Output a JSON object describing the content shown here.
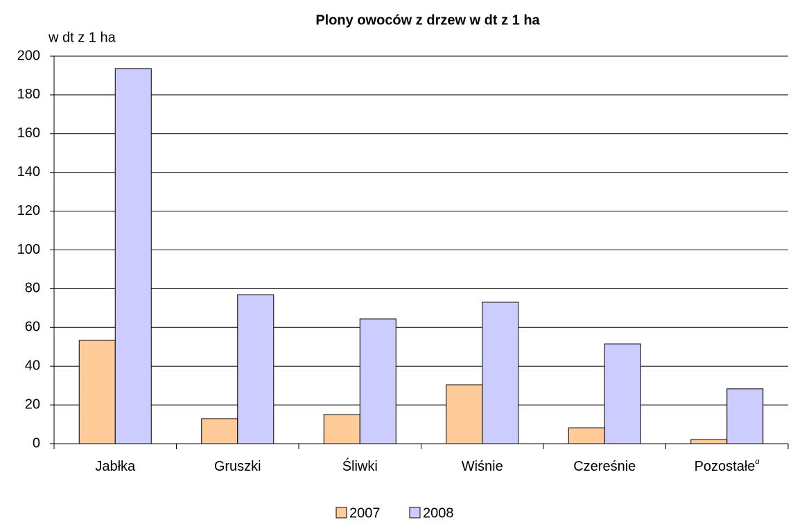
{
  "chart_data": {
    "type": "bar",
    "title": "Plony owoców z drzew w dt z 1 ha",
    "y_label": "w dt z 1 ha",
    "categories": [
      "Jabłka",
      "Gruszki",
      "Śliwki",
      "Wiśnie",
      "Czereśnie",
      "Pozostałe"
    ],
    "category_superscripts": [
      null,
      null,
      null,
      null,
      null,
      "a"
    ],
    "series": [
      {
        "name": "2007",
        "color": "#ffcc99",
        "values": [
          53.3,
          12.9,
          15.0,
          30.4,
          8.2,
          2.1
        ]
      },
      {
        "name": "2008",
        "color": "#ccccff",
        "values": [
          193.6,
          76.9,
          64.4,
          73.0,
          51.5,
          28.3
        ]
      }
    ],
    "ylim": [
      0,
      200
    ],
    "yticks": [
      0,
      20,
      40,
      60,
      80,
      100,
      120,
      140,
      160,
      180,
      200
    ],
    "grid": true,
    "legend": "bottom"
  }
}
